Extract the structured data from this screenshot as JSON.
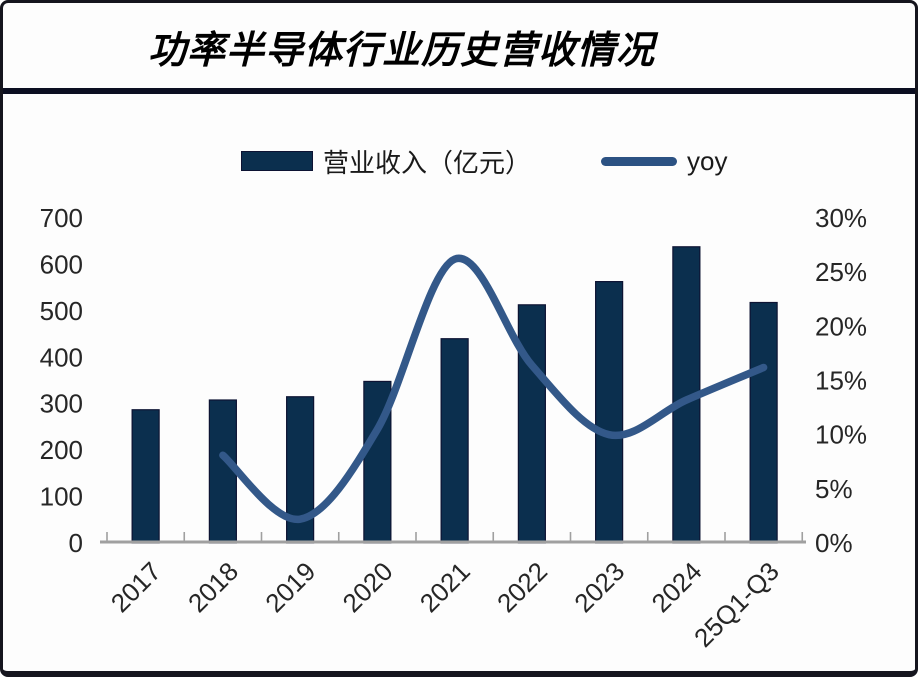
{
  "header": {
    "title": "功率半导体行业历史营收情况"
  },
  "legend": {
    "items": [
      {
        "label": "营业收入（亿元）",
        "swatch": "bar-swatch",
        "color": "#0b2f4e"
      },
      {
        "label": "yoy",
        "swatch": "line-swatch",
        "color": "#2c5283"
      }
    ]
  },
  "chart_data": {
    "type": "combo",
    "title": "功率半导体行业历史营收情况",
    "categories": [
      "2017",
      "2018",
      "2019",
      "2020",
      "2021",
      "2022",
      "2023",
      "2024",
      "25Q1-Q3"
    ],
    "series": [
      {
        "name": "营业收入（亿元）",
        "type": "bar",
        "axis": "left",
        "color": "#0b2f4e",
        "values": [
          287,
          308,
          315,
          348,
          440,
          513,
          563,
          638,
          518
        ]
      },
      {
        "name": "yoy",
        "type": "line",
        "axis": "right",
        "color": "#335889",
        "values_percent": [
          null,
          8.1,
          2.2,
          10.5,
          26.2,
          16.4,
          10.0,
          13.2,
          16.2
        ]
      }
    ],
    "left_axis": {
      "ticks": [
        0,
        100,
        200,
        300,
        400,
        500,
        600,
        700
      ],
      "range": [
        0,
        700
      ]
    },
    "right_axis": {
      "ticks_percent": [
        0,
        5,
        10,
        15,
        20,
        25,
        30
      ],
      "range": [
        0,
        30
      ],
      "suffix": "%"
    },
    "grid": false,
    "legend_position": "top-center",
    "axis_color": "#a0a0a0",
    "text_color": "#262626"
  }
}
